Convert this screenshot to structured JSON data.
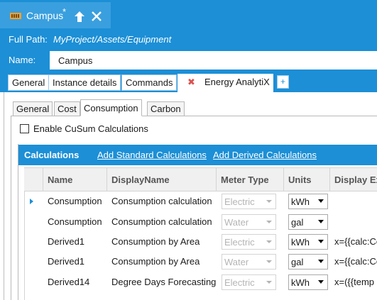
{
  "document_tab": {
    "title": "Campus",
    "modified_mark": "*"
  },
  "full_path": {
    "label": "Full Path:",
    "value": "MyProject/Assets/Equipment"
  },
  "name_field": {
    "label": "Name:",
    "value": "Campus"
  },
  "main_tabs": [
    {
      "label": "General"
    },
    {
      "label": "Instance details"
    },
    {
      "label": "Commands"
    },
    {
      "label": "Energy AnalytiX",
      "active": true
    }
  ],
  "plus_tab": "+",
  "close_tab_glyph": "✖",
  "sub_tabs": [
    {
      "label": "General"
    },
    {
      "label": "Cost"
    },
    {
      "label": "Consumption",
      "active": true
    },
    {
      "label": "Carbon"
    }
  ],
  "enable_cusum": {
    "label": "Enable CuSum Calculations",
    "checked": false
  },
  "calculations": {
    "title": "Calculations",
    "add_standard": "Add Standard Calculations",
    "add_derived": "Add Derived Calculations",
    "columns": [
      "Name",
      "DisplayName",
      "Meter Type",
      "Units",
      "Display Ex"
    ],
    "rows": [
      {
        "name": "Consumption",
        "display_name": "Consumption calculation",
        "meter_type": "Electric",
        "units": "kWh",
        "display_expr": ""
      },
      {
        "name": "Consumption",
        "display_name": "Consumption calculation",
        "meter_type": "Water",
        "units": "gal",
        "display_expr": ""
      },
      {
        "name": "Derived1",
        "display_name": "Consumption by Area",
        "meter_type": "Electric",
        "units": "kWh",
        "display_expr": "x={{calc:Co"
      },
      {
        "name": "Derived1",
        "display_name": "Consumption by Area",
        "meter_type": "Water",
        "units": "gal",
        "display_expr": "x={{calc:Co"
      },
      {
        "name": "Derived14",
        "display_name": "Degree Days Forecasting",
        "meter_type": "Electric",
        "units": "kWh",
        "display_expr": "x=({{temp"
      }
    ]
  },
  "icons": {
    "app": "meter-icon",
    "pin": "pin-up-arrow-icon",
    "close": "close-icon",
    "row_indicator": "current-row-arrow-icon"
  },
  "colors": {
    "accent": "#1c8fd6",
    "tab_close": "#d9534f",
    "app_icon": "#e8a23a"
  }
}
